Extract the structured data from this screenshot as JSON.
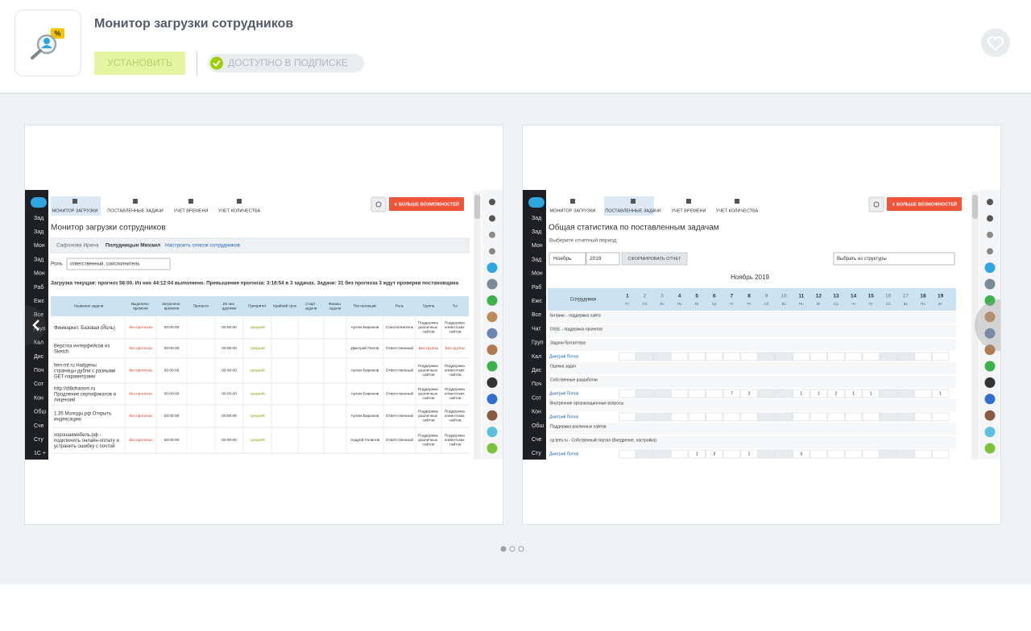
{
  "app": {
    "title": "Монитор загрузки сотрудников",
    "install": "УСТАНОВИТЬ",
    "subscription": "ДОСТУПНО В ПОДПИСКЕ"
  },
  "screenshots": [
    {
      "sidebar": [
        "Зад",
        "Зад",
        "Мон",
        "Зад",
        "Мон",
        "Раб",
        "Ежє",
        "Все",
        "Груп",
        "Кал",
        "Дис",
        "Поч",
        "Сот",
        "Кон",
        "Обш",
        "Сче",
        "Сту",
        "1С +"
      ],
      "tabs": [
        "МОНИТОР ЗАГРУЗКИ",
        "ПОСТАВЛЕННЫЕ ЗАДАЧИ",
        "УЧЕТ ВРЕМЕНИ",
        "УЧЕТ КОЛИЧЕСТВА"
      ],
      "more": "∨ БОЛЬШЕ ВОЗМОЖНОСТЕЙ",
      "title": "Монитор загрузки сотрудников",
      "filters": [
        "Сафонова Ирина",
        "Полудницын Михаил",
        "Настроить список сотрудников"
      ],
      "role_label": "Роль",
      "role": "ответственный, соисполнитель",
      "summary": "Загрузка текущая: прогноз 58:00. Из них 44:12:04 выполнено. Превышение прогноза: 3:18:54 в 3 задачах. Задачи: 31 без прогноза 3 ждут проверки постановщика",
      "columns": [
        "Название задачи",
        "Выделено времени",
        "Затрачено времени",
        "Прогресс",
        "Из них другими",
        "Приоритет",
        "Крайний срок",
        "Старт задачи",
        "Финиш задачи",
        "Постановщик",
        "Роль",
        "Группа",
        "Тег"
      ],
      "rows": [
        {
          "name": "Финмаркет. Базовая (Йоль)",
          "allotted": "без прогноза",
          "spent": "00:00:00",
          "other": "00:00:00",
          "priority": "средний",
          "author": "Артем Бирюков",
          "role": "Соисполнитель",
          "group": "Поддержка различных сайтов",
          "tag": "Поддержка клиентских сайтов"
        },
        {
          "name": "Верстка интерфейсов из Sketch",
          "allotted": "без прогноза",
          "spent": "00:00:00",
          "other": "00:00:00",
          "priority": "средний",
          "author": "Дмитрий Попов",
          "role": "Ответственный",
          "group": "Без группы",
          "tag": "Без группы"
        },
        {
          "name": "fem-mf.ru Найдены страницы-дубли с разными GET-параметрами",
          "allotted": "без прогноза",
          "spent": "00:00:00",
          "other": "00:00:00",
          "priority": "средний",
          "author": "Артем Бирюков",
          "role": "Ответственный",
          "group": "Поддержка различных сайтов",
          "tag": "Поддержка клиентских сайтов"
        },
        {
          "name": "http://dl8chanom.ru Продление сертификатов и лицензий",
          "allotted": "без прогноза",
          "spent": "00:00:00",
          "other": "00:00:00",
          "priority": "средний",
          "author": "Артем Бирюков",
          "role": "Ответственный",
          "group": "Поддержка различных сайтов",
          "tag": "Поддержка клиентских сайтов"
        },
        {
          "name": "1.35 Молоды.рф Открыть индексацию",
          "allotted": "без прогноза",
          "spent": "00:00:00",
          "other": "00:00:00",
          "priority": "средний",
          "author": "Артем Бирюков",
          "role": "Ответственный",
          "group": "Поддержка различных сайтов",
          "tag": "Поддержка клиентских сайтов"
        },
        {
          "name": "хорошаямебель.рф - подключить онлайн-оплату и устранить ошибку с почтой",
          "allotted": "без прогноза",
          "spent": "00:00:00",
          "other": "00:00:00",
          "priority": "средний",
          "author": "Андрей Галинов",
          "role": "Ответственный",
          "group": "Поддержка различных сайтов",
          "tag": "Поддержка клиентских сайтов"
        }
      ]
    },
    {
      "sidebar": [
        "Зад",
        "Зад",
        "Мон",
        "Зад",
        "Мон",
        "Раб",
        "Ежє",
        "Все",
        "Чат",
        "Груп",
        "Кал",
        "Дис",
        "Поч",
        "Сот",
        "Кон",
        "Обш",
        "Сче",
        "Сту",
        "1С +"
      ],
      "tabs": [
        "МОНИТОР ЗАГРУЗКИ",
        "ПОСТАВЛЕННЫЕ ЗАДАЧИ",
        "УЧЕТ ВРЕМЕНИ",
        "УЧЕТ КОЛИЧЕСТВА"
      ],
      "more": "∨ БОЛЬШЕ ВОЗМОЖНОСТЕЙ",
      "title": "Общая статистика по поставленным задачам",
      "period_label": "Выберите отчетный период",
      "month": "Ноябрь",
      "year": "2019",
      "button": "СФОРМИРОВАТЬ ОТЧЕТ",
      "structure": "Выбрать из структуры",
      "heading": "Ноябрь 2019",
      "employees": "Сотрудники",
      "days": [
        1,
        2,
        3,
        4,
        5,
        6,
        7,
        8,
        9,
        10,
        11,
        12,
        13,
        14,
        15,
        16,
        17,
        18,
        19
      ],
      "weekdays": [
        "Пт",
        "Сб",
        "Вс",
        "Пн",
        "Вт",
        "Ср",
        "Чт",
        "Пт",
        "Сб",
        "Вс",
        "Пн",
        "Вт",
        "Ср",
        "Чт",
        "Пт",
        "Сб",
        "Вс",
        "Пн",
        "Вт"
      ],
      "rows": [
        {
          "label": "Битрикс - поддержка сайта"
        },
        {
          "label": "DSSL - поддержка проектов"
        },
        {
          "label": "Задачи бухгалтера"
        },
        {
          "person": "Дмитрий Попов",
          "cells": [
            null,
            null,
            null,
            null,
            null,
            null,
            null,
            null,
            null,
            null,
            null,
            null,
            null,
            null,
            null,
            null,
            null,
            null,
            null
          ]
        },
        {
          "label": "Оценка задач"
        },
        {
          "label": "Собственные разработки"
        },
        {
          "person": "Дмитрий Попов",
          "cells": [
            null,
            null,
            null,
            null,
            null,
            null,
            7,
            2,
            null,
            null,
            1,
            1,
            2,
            1,
            1,
            null,
            null,
            null,
            1
          ]
        },
        {
          "label": "Внутренние организационные вопросы"
        },
        {
          "person": "Дмитрий Попов",
          "cells": [
            null,
            null,
            null,
            null,
            null,
            null,
            null,
            null,
            null,
            null,
            null,
            null,
            null,
            null,
            null,
            null,
            null,
            null,
            null
          ]
        },
        {
          "label": "Поддержка различных сайтов"
        },
        {
          "label": "cp.tees.ru - Собственный портал (Внедрение, настройка)"
        },
        {
          "person": "Дмитрий Попов",
          "cells": [
            null,
            null,
            null,
            null,
            1,
            3,
            null,
            1,
            null,
            null,
            3,
            null,
            null,
            null,
            null,
            null,
            null,
            null,
            null
          ]
        }
      ]
    }
  ]
}
